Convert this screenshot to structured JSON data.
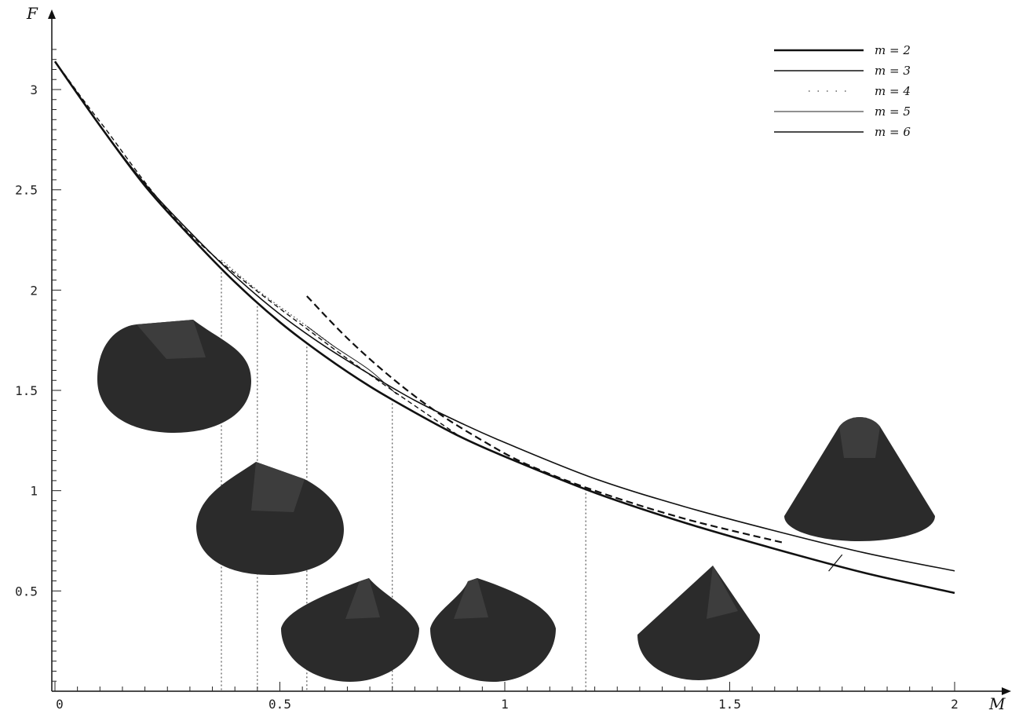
{
  "chart_data": {
    "type": "line",
    "title": "",
    "xlabel": "M",
    "ylabel": "F",
    "xlim": [
      0,
      2.05
    ],
    "ylim": [
      0,
      3.3
    ],
    "x_ticks": [
      {
        "value": 0,
        "label": "0"
      },
      {
        "value": 0.5,
        "label": "0.5"
      },
      {
        "value": 1,
        "label": "1"
      },
      {
        "value": 1.5,
        "label": "1.5"
      },
      {
        "value": 2,
        "label": "2"
      }
    ],
    "y_ticks": [
      {
        "value": 0.5,
        "label": "0.5"
      },
      {
        "value": 1,
        "label": "1"
      },
      {
        "value": 1.5,
        "label": "1.5"
      },
      {
        "value": 2,
        "label": "2"
      },
      {
        "value": 2.5,
        "label": "2.5"
      },
      {
        "value": 3,
        "label": "3"
      }
    ],
    "grid": false,
    "legend_position": "top-right",
    "series": [
      {
        "name": "m = 2",
        "style": "solid-thick",
        "color": "#111111",
        "points": [
          [
            0,
            3.14
          ],
          [
            0.1,
            2.82
          ],
          [
            0.2,
            2.52
          ],
          [
            0.3,
            2.27
          ],
          [
            0.4,
            2.04
          ],
          [
            0.5,
            1.84
          ],
          [
            0.6,
            1.67
          ],
          [
            0.7,
            1.52
          ],
          [
            0.8,
            1.39
          ],
          [
            0.9,
            1.27
          ],
          [
            1.0,
            1.17
          ],
          [
            1.2,
            0.99
          ],
          [
            1.4,
            0.84
          ],
          [
            1.6,
            0.71
          ],
          [
            1.8,
            0.59
          ],
          [
            2.0,
            0.49
          ]
        ]
      },
      {
        "name": "m = 3",
        "style": "solid",
        "color": "#111111",
        "points": [
          [
            0,
            3.14
          ],
          [
            0.1,
            2.82
          ],
          [
            0.2,
            2.53
          ],
          [
            0.3,
            2.29
          ],
          [
            0.4,
            2.07
          ],
          [
            0.5,
            1.88
          ],
          [
            0.6,
            1.72
          ],
          [
            0.7,
            1.58
          ],
          [
            0.8,
            1.45
          ],
          [
            0.9,
            1.34
          ],
          [
            1.0,
            1.24
          ],
          [
            1.2,
            1.06
          ],
          [
            1.4,
            0.92
          ],
          [
            1.6,
            0.8
          ],
          [
            1.8,
            0.69
          ],
          [
            2.0,
            0.6
          ]
        ]
      },
      {
        "name": "m = 4",
        "style": "dotted",
        "color": "#444444",
        "points": [
          [
            0.37,
            2.15
          ],
          [
            0.45,
            2.0
          ],
          [
            0.56,
            1.82
          ],
          [
            0.62,
            1.72
          ]
        ]
      },
      {
        "name": "m = 5",
        "style": "solid-thin",
        "color": "#222222",
        "points": [
          [
            0.56,
            1.82
          ],
          [
            0.62,
            1.72
          ],
          [
            0.7,
            1.6
          ],
          [
            0.76,
            1.48
          ]
        ]
      },
      {
        "name": "m = 6",
        "style": "dashed",
        "color": "#111111",
        "points": [
          [
            0.02,
            3.08
          ],
          [
            0.1,
            2.84
          ],
          [
            0.3,
            2.28
          ],
          [
            0.6,
            1.74
          ],
          [
            0.9,
            1.27
          ]
        ]
      },
      {
        "name": "",
        "style": "dashed-thick",
        "color": "#111111",
        "points": [
          [
            0.56,
            1.97
          ],
          [
            0.65,
            1.76
          ],
          [
            0.75,
            1.56
          ],
          [
            0.85,
            1.39
          ],
          [
            0.95,
            1.25
          ],
          [
            1.05,
            1.13
          ],
          [
            1.2,
            1.0
          ],
          [
            1.4,
            0.86
          ],
          [
            1.62,
            0.74
          ]
        ]
      }
    ],
    "guide_lines_x": [
      0.37,
      0.45,
      0.56,
      0.75,
      1.18
    ],
    "shapes": [
      {
        "name": "rounded-top",
        "center": [
          0.27,
          1.6
        ]
      },
      {
        "name": "sloped-top",
        "center": [
          0.48,
          0.9
        ]
      },
      {
        "name": "peaked-1",
        "center": [
          0.66,
          0.3
        ]
      },
      {
        "name": "peaked-2",
        "center": [
          0.97,
          0.3
        ]
      },
      {
        "name": "cone-pointed",
        "center": [
          1.43,
          0.3
        ]
      },
      {
        "name": "rounded-cone",
        "center": [
          1.78,
          0.95
        ]
      }
    ]
  }
}
